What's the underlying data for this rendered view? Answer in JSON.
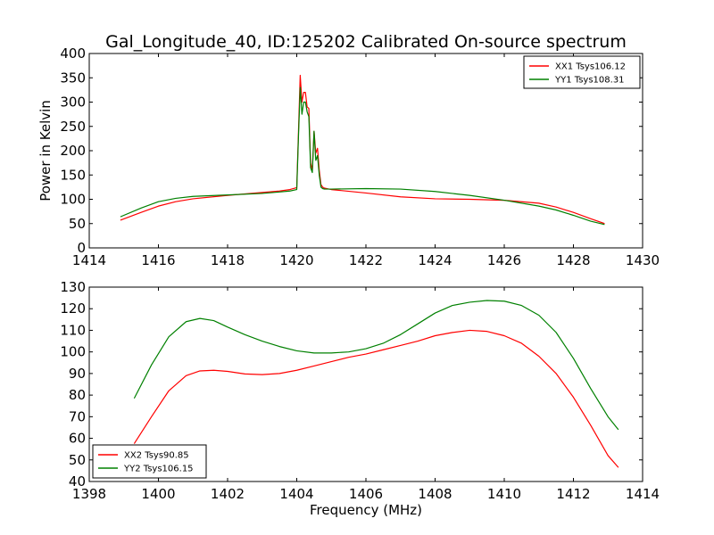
{
  "figure": {
    "title": "Gal_Longitude_40, ID:125202 Calibrated On-source spectrum"
  },
  "chart_data": [
    {
      "type": "line",
      "title": "Gal_Longitude_40, ID:125202 Calibrated On-source spectrum",
      "xlabel": "",
      "ylabel": "Power in Kelvin",
      "xlim": [
        1414,
        1430
      ],
      "ylim": [
        0,
        400
      ],
      "xticks": [
        1414,
        1416,
        1418,
        1420,
        1422,
        1424,
        1426,
        1428,
        1430
      ],
      "yticks": [
        0,
        50,
        100,
        150,
        200,
        250,
        300,
        350,
        400
      ],
      "grid": false,
      "legend": "top-right",
      "series": [
        {
          "name": "XX1 Tsys106.12",
          "color": "#ff0000",
          "x": [
            1414.9,
            1415.5,
            1416,
            1416.5,
            1417,
            1418,
            1419,
            1419.5,
            1419.8,
            1420,
            1420.05,
            1420.1,
            1420.15,
            1420.2,
            1420.25,
            1420.3,
            1420.35,
            1420.4,
            1420.45,
            1420.5,
            1420.55,
            1420.6,
            1420.65,
            1420.7,
            1420.75,
            1420.8,
            1421,
            1422,
            1423,
            1424,
            1425,
            1426,
            1427,
            1427.5,
            1428,
            1428.5,
            1428.9
          ],
          "y": [
            57,
            73,
            86,
            95,
            101,
            108,
            114,
            117,
            120,
            124,
            240,
            355,
            300,
            320,
            320,
            290,
            287,
            175,
            160,
            240,
            195,
            205,
            160,
            130,
            125,
            123,
            120,
            113,
            105,
            101,
            100,
            98,
            92,
            84,
            73,
            60,
            50
          ]
        },
        {
          "name": "YY1 Tsys108.31",
          "color": "#008000",
          "x": [
            1414.9,
            1415.5,
            1416,
            1416.5,
            1417,
            1418,
            1419,
            1419.5,
            1419.8,
            1420,
            1420.05,
            1420.1,
            1420.15,
            1420.2,
            1420.25,
            1420.3,
            1420.35,
            1420.4,
            1420.45,
            1420.5,
            1420.55,
            1420.6,
            1420.65,
            1420.7,
            1420.75,
            1420.8,
            1421,
            1422,
            1423,
            1424,
            1425,
            1426,
            1427,
            1427.5,
            1428,
            1428.5,
            1428.9
          ],
          "y": [
            64,
            82,
            95,
            102,
            106,
            109,
            112,
            115,
            117,
            120,
            230,
            330,
            275,
            300,
            300,
            280,
            270,
            165,
            155,
            240,
            180,
            190,
            150,
            125,
            122,
            121,
            121,
            122,
            121,
            116,
            108,
            98,
            86,
            78,
            67,
            55,
            48
          ]
        }
      ]
    },
    {
      "type": "line",
      "title": "",
      "xlabel": "Frequency (MHz)",
      "ylabel": "",
      "xlim": [
        1398,
        1414
      ],
      "ylim": [
        40,
        130
      ],
      "xticks": [
        1398,
        1400,
        1402,
        1404,
        1406,
        1408,
        1410,
        1412,
        1414
      ],
      "yticks": [
        40,
        50,
        60,
        70,
        80,
        90,
        100,
        110,
        120,
        130
      ],
      "grid": false,
      "legend": "bottom-left",
      "series": [
        {
          "name": "XX2 Tsys90.85",
          "color": "#ff0000",
          "x": [
            1399.3,
            1399.8,
            1400.3,
            1400.8,
            1401.2,
            1401.6,
            1402,
            1402.5,
            1403,
            1403.5,
            1404,
            1404.5,
            1405,
            1405.5,
            1406,
            1406.5,
            1407,
            1407.5,
            1408,
            1408.5,
            1409,
            1409.5,
            1410,
            1410.5,
            1411,
            1411.5,
            1412,
            1412.5,
            1413,
            1413.3
          ],
          "y": [
            57.5,
            70,
            82,
            89,
            91.2,
            91.5,
            91,
            89.8,
            89.5,
            90,
            91.5,
            93.5,
            95.5,
            97.5,
            99,
            101,
            103,
            105,
            107.5,
            109,
            110,
            109.5,
            107.5,
            104,
            98,
            90,
            79,
            66,
            52,
            46.5
          ]
        },
        {
          "name": "YY2 Tsys106.15",
          "color": "#008000",
          "x": [
            1399.3,
            1399.8,
            1400.3,
            1400.8,
            1401.2,
            1401.6,
            1402,
            1402.5,
            1403,
            1403.5,
            1404,
            1404.5,
            1405,
            1405.5,
            1406,
            1406.5,
            1407,
            1407.5,
            1408,
            1408.5,
            1409,
            1409.5,
            1410,
            1410.5,
            1411,
            1411.5,
            1412,
            1412.5,
            1413,
            1413.3
          ],
          "y": [
            78.5,
            94,
            107,
            114,
            115.5,
            114.5,
            111.5,
            108,
            105,
            102.5,
            100.5,
            99.5,
            99.5,
            100,
            101.5,
            104,
            108,
            113,
            118,
            121.5,
            123,
            123.8,
            123.5,
            121.5,
            117,
            109,
            97,
            83,
            70,
            64
          ]
        }
      ]
    }
  ]
}
